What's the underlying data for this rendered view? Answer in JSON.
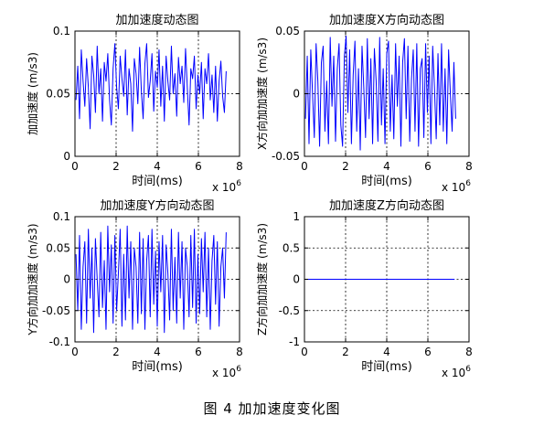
{
  "figure_caption": "图 4  加加速度变化图",
  "chart_data": [
    {
      "type": "line",
      "title": "加加速度动态图",
      "xlabel": "时间(ms)",
      "ylabel": "加加速度 (m/s3)",
      "x_multiplier_base": "x 10",
      "x_multiplier_exp": "6",
      "xlim": [
        0,
        8
      ],
      "ylim": [
        0,
        0.1
      ],
      "xticks": [
        0,
        2,
        4,
        6,
        8
      ],
      "xtick_labels": [
        "0",
        "2",
        "4",
        "6",
        "8"
      ],
      "yticks": [
        0,
        0.05,
        0.1
      ],
      "ytick_labels": [
        "0",
        "0.05",
        "0.1"
      ],
      "grid": "dotted",
      "color": "#0000ff",
      "series": [
        {
          "x_range": [
            0.05,
            7.35
          ],
          "y": [
            0.045,
            0.072,
            0.03,
            0.085,
            0.06,
            0.04,
            0.078,
            0.055,
            0.022,
            0.08,
            0.065,
            0.035,
            0.088,
            0.05,
            0.07,
            0.028,
            0.075,
            0.06,
            0.082,
            0.045,
            0.025,
            0.07,
            0.09,
            0.055,
            0.038,
            0.08,
            0.062,
            0.048,
            0.085,
            0.033,
            0.07,
            0.058,
            0.02,
            0.078,
            0.066,
            0.042,
            0.087,
            0.052,
            0.03,
            0.074,
            0.09,
            0.047,
            0.06,
            0.082,
            0.036,
            0.068,
            0.055,
            0.085,
            0.04,
            0.072,
            0.028,
            0.08,
            0.06,
            0.045,
            0.088,
            0.05,
            0.066,
            0.032,
            0.079,
            0.058,
            0.072,
            0.043,
            0.086,
            0.055,
            0.025,
            0.07,
            0.062,
            0.08,
            0.038,
            0.065,
            0.05,
            0.075,
            0.03,
            0.07,
            0.058,
            0.082,
            0.045,
            0.065,
            0.035,
            0.072,
            0.028,
            0.06,
            0.076,
            0.048,
            0.035,
            0.068
          ]
        }
      ]
    },
    {
      "type": "line",
      "title": "加加速度X方向动态图",
      "xlabel": "时间(ms)",
      "ylabel": "X方向加加速度 (m/s3)",
      "x_multiplier_base": "x 10",
      "x_multiplier_exp": "6",
      "xlim": [
        0,
        8
      ],
      "ylim": [
        -0.05,
        0.05
      ],
      "xticks": [
        0,
        2,
        4,
        6,
        8
      ],
      "xtick_labels": [
        "0",
        "2",
        "4",
        "6",
        "8"
      ],
      "yticks": [
        -0.05,
        0,
        0.05
      ],
      "ytick_labels": [
        "-0.05",
        "0",
        "0.05"
      ],
      "grid": "dotted",
      "color": "#0000ff",
      "series": [
        {
          "x_range": [
            0.05,
            7.35
          ],
          "y": [
            -0.02,
            0.03,
            -0.04,
            0.035,
            0.0,
            -0.035,
            0.04,
            0.01,
            -0.042,
            0.025,
            0.038,
            -0.03,
            0.01,
            -0.04,
            0.045,
            -0.01,
            0.03,
            -0.038,
            0.02,
            0.04,
            -0.025,
            -0.042,
            0.03,
            0.046,
            -0.015,
            0.035,
            -0.04,
            0.015,
            0.042,
            -0.03,
            0.02,
            -0.045,
            0.038,
            0.005,
            -0.035,
            0.044,
            -0.02,
            0.028,
            -0.04,
            0.036,
            0.01,
            -0.038,
            0.045,
            -0.025,
            0.02,
            -0.04,
            0.032,
            0.042,
            -0.03,
            0.015,
            -0.036,
            0.04,
            -0.01,
            0.03,
            -0.042,
            0.025,
            0.044,
            -0.02,
            0.038,
            -0.038,
            0.012,
            0.035,
            -0.03,
            0.04,
            -0.042,
            0.02,
            0.028,
            -0.035,
            0.04,
            -0.015,
            0.03,
            -0.04,
            0.038,
            0.005,
            -0.036,
            0.032,
            -0.025,
            0.04,
            -0.03,
            0.02,
            -0.04,
            0.035,
            0.0,
            -0.03,
            0.025,
            -0.02
          ]
        }
      ]
    },
    {
      "type": "line",
      "title": "加加速度Y方向动态图",
      "xlabel": "时间(ms)",
      "ylabel": "Y方向加加速度 (m/s3)",
      "x_multiplier_base": "x 10",
      "x_multiplier_exp": "6",
      "xlim": [
        0,
        8
      ],
      "ylim": [
        -0.1,
        0.1
      ],
      "xticks": [
        0,
        2,
        4,
        6,
        8
      ],
      "xtick_labels": [
        "0",
        "2",
        "4",
        "6",
        "8"
      ],
      "yticks": [
        -0.1,
        -0.05,
        0,
        0.05,
        0.1
      ],
      "ytick_labels": [
        "-0.1",
        "-0.05",
        "0",
        "0.05",
        "0.1"
      ],
      "grid": "dotted",
      "color": "#0000ff",
      "series": [
        {
          "x_range": [
            0.05,
            7.35
          ],
          "y": [
            0.04,
            -0.05,
            0.07,
            -0.08,
            0.02,
            0.06,
            -0.07,
            0.08,
            -0.03,
            0.05,
            -0.085,
            0.065,
            0.0,
            -0.06,
            0.075,
            -0.045,
            0.03,
            -0.08,
            0.085,
            -0.02,
            0.055,
            -0.07,
            0.07,
            -0.05,
            0.01,
            0.08,
            -0.075,
            0.04,
            -0.065,
            0.085,
            -0.03,
            0.06,
            -0.08,
            0.05,
            0.02,
            -0.07,
            0.075,
            -0.055,
            0.065,
            -0.08,
            0.03,
            0.07,
            -0.06,
            0.08,
            -0.04,
            0.045,
            -0.075,
            0.06,
            -0.02,
            0.07,
            -0.085,
            0.055,
            0.01,
            -0.065,
            0.08,
            -0.05,
            0.035,
            -0.07,
            0.075,
            -0.03,
            0.06,
            -0.08,
            0.05,
            0.02,
            -0.06,
            0.07,
            -0.045,
            0.08,
            -0.07,
            0.04,
            -0.055,
            0.065,
            -0.02,
            0.075,
            -0.06,
            0.05,
            -0.08,
            0.03,
            0.07,
            -0.04,
            0.06,
            -0.075,
            0.02,
            0.05,
            -0.03,
            0.075
          ]
        }
      ]
    },
    {
      "type": "line",
      "title": "加加速度Z方向动态图",
      "xlabel": "时间(ms)",
      "ylabel": "Z方向加加速度 (m/s3)",
      "x_multiplier_base": "x 10",
      "x_multiplier_exp": "6",
      "xlim": [
        0,
        8
      ],
      "ylim": [
        -1,
        1
      ],
      "xticks": [
        0,
        2,
        4,
        6,
        8
      ],
      "xtick_labels": [
        "0",
        "2",
        "4",
        "6",
        "8"
      ],
      "yticks": [
        -1,
        -0.5,
        0,
        0.5,
        1
      ],
      "ytick_labels": [
        "-1",
        "-0.5",
        "0",
        "0.5",
        "1"
      ],
      "grid": "dotted",
      "color": "#0000ff",
      "series": [
        {
          "x_range": [
            0.0,
            7.3
          ],
          "y": [
            0,
            0
          ]
        }
      ]
    }
  ]
}
